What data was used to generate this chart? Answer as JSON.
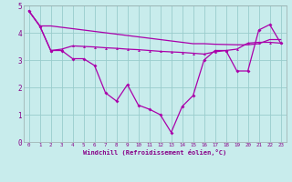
{
  "xlabel": "Windchill (Refroidissement éolien,°C)",
  "background_color": "#c8ecec",
  "line_color": "#aa00aa",
  "xlim": [
    -0.5,
    23.5
  ],
  "ylim": [
    0,
    5
  ],
  "xticks": [
    0,
    1,
    2,
    3,
    4,
    5,
    6,
    7,
    8,
    9,
    10,
    11,
    12,
    13,
    14,
    15,
    16,
    17,
    18,
    19,
    20,
    21,
    22,
    23
  ],
  "yticks": [
    0,
    1,
    2,
    3,
    4,
    5
  ],
  "grid_color": "#99cccc",
  "line1_x": [
    0,
    1,
    2,
    3,
    4,
    5,
    6,
    7,
    8,
    9,
    10,
    11,
    12,
    13,
    14,
    15,
    16,
    17,
    18,
    19,
    20,
    21,
    22,
    23
  ],
  "line1_y": [
    4.8,
    4.25,
    4.25,
    4.2,
    4.15,
    4.1,
    4.05,
    4.0,
    3.95,
    3.9,
    3.85,
    3.8,
    3.75,
    3.7,
    3.65,
    3.6,
    3.6,
    3.58,
    3.57,
    3.56,
    3.56,
    3.6,
    3.75,
    3.75
  ],
  "line2_x": [
    0,
    1,
    2,
    3,
    4,
    5,
    6,
    7,
    8,
    9,
    10,
    11,
    12,
    13,
    14,
    15,
    16,
    17,
    18,
    19,
    20,
    21,
    22,
    23
  ],
  "line2_y": [
    4.8,
    4.25,
    3.35,
    3.4,
    3.52,
    3.5,
    3.48,
    3.45,
    3.43,
    3.4,
    3.38,
    3.35,
    3.32,
    3.3,
    3.28,
    3.25,
    3.22,
    3.3,
    3.35,
    3.4,
    3.62,
    3.65,
    3.65,
    3.62
  ],
  "line3_x": [
    0,
    1,
    2,
    3,
    4,
    5,
    6,
    7,
    8,
    9,
    10,
    11,
    12,
    13,
    14,
    15,
    16,
    17,
    18,
    19,
    20,
    21,
    22,
    23
  ],
  "line3_y": [
    4.8,
    4.25,
    3.35,
    3.35,
    3.05,
    3.05,
    2.8,
    1.8,
    1.5,
    2.1,
    1.35,
    1.2,
    1.0,
    0.35,
    1.3,
    1.7,
    3.0,
    3.35,
    3.35,
    2.6,
    2.6,
    4.1,
    4.3,
    3.62
  ]
}
